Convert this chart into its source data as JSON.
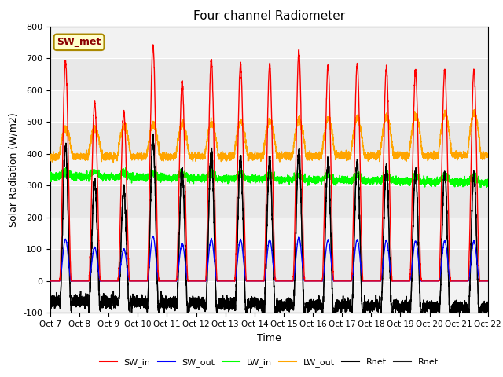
{
  "title": "Four channel Radiometer",
  "xlabel": "Time",
  "ylabel": "Solar Radiation (W/m2)",
  "ylim": [
    -100,
    800
  ],
  "annotation": "SW_met",
  "x_tick_labels": [
    "Oct 7",
    "Oct 8",
    "Oct 9",
    "Oct 10",
    "Oct 11",
    "Oct 12",
    "Oct 13",
    "Oct 14",
    "Oct 15",
    "Oct 16",
    "Oct 17",
    "Oct 18",
    "Oct 19",
    "Oct 20",
    "Oct 21",
    "Oct 22"
  ],
  "legend_entries": [
    "SW_in",
    "SW_out",
    "LW_in",
    "LW_out",
    "Rnet",
    "Rnet"
  ],
  "legend_colors": [
    "#ff0000",
    "#0000ff",
    "#00ff00",
    "#ffa500",
    "#000000",
    "#000000"
  ],
  "bg_color_light": "#ebebeb",
  "bg_color_dark": "#d8d8d8",
  "num_days": 15,
  "sw_in_peaks": [
    690,
    560,
    530,
    740,
    620,
    695,
    680,
    680,
    720,
    675,
    680,
    670,
    660,
    665,
    660
  ],
  "yticks": [
    -100,
    0,
    100,
    200,
    300,
    400,
    500,
    600,
    700,
    800
  ]
}
